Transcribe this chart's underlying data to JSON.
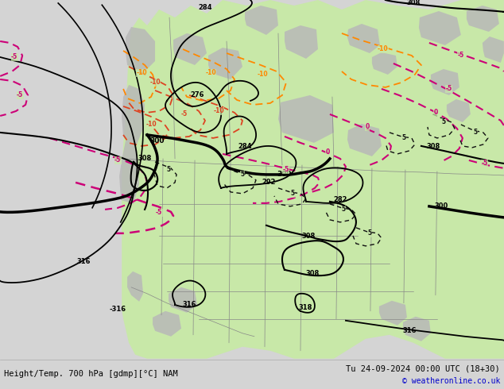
{
  "title_left": "Height/Temp. 700 hPa [gdmp][°C] NAM",
  "title_right": "Tu 24-09-2024 00:00 UTC (18+30)",
  "copyright": "© weatheronline.co.uk",
  "bg_color": "#d4d4d4",
  "land_color": "#c8e8a8",
  "gray_area_color": "#b8b8b8",
  "border_color": "#888888",
  "height_color": "#000000",
  "temp_magenta": "#cc0077",
  "temp_red": "#dd4422",
  "temp_orange": "#ff8800",
  "footer_bg": "#e0e0e0",
  "font_mono": "monospace"
}
